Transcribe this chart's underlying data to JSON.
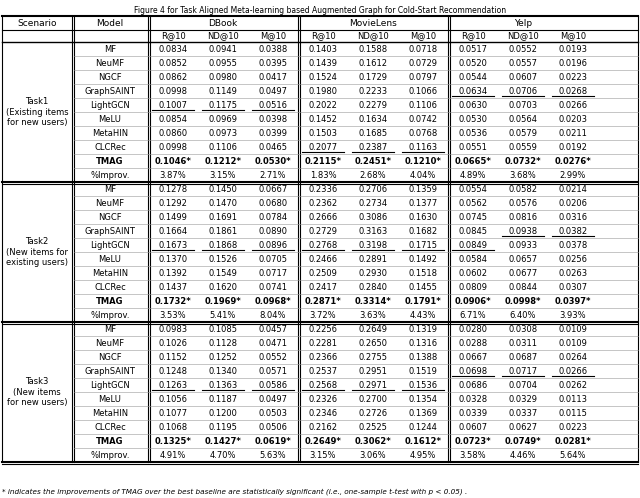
{
  "title": "Figure 4 for Task Aligned Meta-learning based Augmented Graph for Cold-Start Recommendation",
  "footnote": "* indicates the improvements of TMAG over the best baseline are statistically significant (i.e., one-sample t-test with p < 0.05) .",
  "col_groups": [
    "DBook",
    "MovieLens",
    "Yelp"
  ],
  "col_metrics": [
    "R@10",
    "ND@10",
    "M@10"
  ],
  "models": [
    "MF",
    "NeuMF",
    "NGCF",
    "GraphSAINT",
    "LightGCN",
    "MeLU",
    "MetaHIN",
    "CLCRec",
    "TMAG",
    "%Improv."
  ],
  "task_labels": [
    "Task1\n(Existing items\nfor new users)",
    "Task2\n(New items for\nexisting users)",
    "Task3\n(New items\nfor new users)"
  ],
  "data": {
    "Task1": {
      "MF": {
        "DBook": [
          0.0834,
          0.0941,
          0.0388
        ],
        "MovieLens": [
          0.1403,
          0.1588,
          0.0718
        ],
        "Yelp": [
          0.0517,
          0.0552,
          0.0193
        ]
      },
      "NeuMF": {
        "DBook": [
          0.0852,
          0.0955,
          0.0395
        ],
        "MovieLens": [
          0.1439,
          0.1612,
          0.0729
        ],
        "Yelp": [
          0.052,
          0.0557,
          0.0196
        ]
      },
      "NGCF": {
        "DBook": [
          0.0862,
          0.098,
          0.0417
        ],
        "MovieLens": [
          0.1524,
          0.1729,
          0.0797
        ],
        "Yelp": [
          0.0544,
          0.0607,
          0.0223
        ]
      },
      "GraphSAINT": {
        "DBook": [
          0.0998,
          0.1149,
          0.0497
        ],
        "MovieLens": [
          0.198,
          0.2233,
          0.1066
        ],
        "Yelp": [
          0.0634,
          0.0706,
          0.0268
        ]
      },
      "LightGCN": {
        "DBook": [
          0.1007,
          0.1175,
          0.0516
        ],
        "MovieLens": [
          0.2022,
          0.2279,
          0.1106
        ],
        "Yelp": [
          0.063,
          0.0703,
          0.0266
        ]
      },
      "MeLU": {
        "DBook": [
          0.0854,
          0.0969,
          0.0398
        ],
        "MovieLens": [
          0.1452,
          0.1634,
          0.0742
        ],
        "Yelp": [
          0.053,
          0.0564,
          0.0203
        ]
      },
      "MetaHIN": {
        "DBook": [
          0.086,
          0.0973,
          0.0399
        ],
        "MovieLens": [
          0.1503,
          0.1685,
          0.0768
        ],
        "Yelp": [
          0.0536,
          0.0579,
          0.0211
        ]
      },
      "CLCRec": {
        "DBook": [
          0.0998,
          0.1106,
          0.0465
        ],
        "MovieLens": [
          0.2077,
          0.2387,
          0.1163
        ],
        "Yelp": [
          0.0551,
          0.0559,
          0.0192
        ]
      },
      "TMAG": {
        "DBook": [
          0.1046,
          0.1212,
          0.053
        ],
        "MovieLens": [
          0.2115,
          0.2451,
          0.121
        ],
        "Yelp": [
          0.0665,
          0.0732,
          0.0276
        ]
      },
      "%Improv.": {
        "DBook": [
          "3.87%",
          "3.15%",
          "2.71%"
        ],
        "MovieLens": [
          "1.83%",
          "2.68%",
          "4.04%"
        ],
        "Yelp": [
          "4.89%",
          "3.68%",
          "2.99%"
        ]
      }
    },
    "Task2": {
      "MF": {
        "DBook": [
          0.1278,
          0.145,
          0.0667
        ],
        "MovieLens": [
          0.2336,
          0.2706,
          0.1359
        ],
        "Yelp": [
          0.0554,
          0.0582,
          0.0214
        ]
      },
      "NeuMF": {
        "DBook": [
          0.1292,
          0.147,
          0.068
        ],
        "MovieLens": [
          0.2362,
          0.2734,
          0.1377
        ],
        "Yelp": [
          0.0562,
          0.0576,
          0.0206
        ]
      },
      "NGCF": {
        "DBook": [
          0.1499,
          0.1691,
          0.0784
        ],
        "MovieLens": [
          0.2666,
          0.3086,
          0.163
        ],
        "Yelp": [
          0.0745,
          0.0816,
          0.0316
        ]
      },
      "GraphSAINT": {
        "DBook": [
          0.1664,
          0.1861,
          0.089
        ],
        "MovieLens": [
          0.2729,
          0.3163,
          0.1682
        ],
        "Yelp": [
          0.0845,
          0.0938,
          0.0382
        ]
      },
      "LightGCN": {
        "DBook": [
          0.1673,
          0.1868,
          0.0896
        ],
        "MovieLens": [
          0.2768,
          0.3198,
          0.1715
        ],
        "Yelp": [
          0.0849,
          0.0933,
          0.0378
        ]
      },
      "MeLU": {
        "DBook": [
          0.137,
          0.1526,
          0.0705
        ],
        "MovieLens": [
          0.2466,
          0.2891,
          0.1492
        ],
        "Yelp": [
          0.0584,
          0.0657,
          0.0256
        ]
      },
      "MetaHIN": {
        "DBook": [
          0.1392,
          0.1549,
          0.0717
        ],
        "MovieLens": [
          0.2509,
          0.293,
          0.1518
        ],
        "Yelp": [
          0.0602,
          0.0677,
          0.0263
        ]
      },
      "CLCRec": {
        "DBook": [
          0.1437,
          0.162,
          0.0741
        ],
        "MovieLens": [
          0.2417,
          0.284,
          0.1455
        ],
        "Yelp": [
          0.0809,
          0.0844,
          0.0307
        ]
      },
      "TMAG": {
        "DBook": [
          0.1732,
          0.1969,
          0.0968
        ],
        "MovieLens": [
          0.2871,
          0.3314,
          0.1791
        ],
        "Yelp": [
          0.0906,
          0.0998,
          0.0397
        ]
      },
      "%Improv.": {
        "DBook": [
          "3.53%",
          "5.41%",
          "8.04%"
        ],
        "MovieLens": [
          "3.72%",
          "3.63%",
          "4.43%"
        ],
        "Yelp": [
          "6.71%",
          "6.40%",
          "3.93%"
        ]
      }
    },
    "Task3": {
      "MF": {
        "DBook": [
          0.0983,
          0.1085,
          0.0457
        ],
        "MovieLens": [
          0.2256,
          0.2649,
          0.1319
        ],
        "Yelp": [
          0.028,
          0.0308,
          0.0109
        ]
      },
      "NeuMF": {
        "DBook": [
          0.1026,
          0.1128,
          0.0471
        ],
        "MovieLens": [
          0.2281,
          0.265,
          0.1316
        ],
        "Yelp": [
          0.0288,
          0.0311,
          0.0109
        ]
      },
      "NGCF": {
        "DBook": [
          0.1152,
          0.1252,
          0.0552
        ],
        "MovieLens": [
          0.2366,
          0.2755,
          0.1388
        ],
        "Yelp": [
          0.0667,
          0.0687,
          0.0264
        ]
      },
      "GraphSAINT": {
        "DBook": [
          0.1248,
          0.134,
          0.0571
        ],
        "MovieLens": [
          0.2537,
          0.2951,
          0.1519
        ],
        "Yelp": [
          0.0698,
          0.0717,
          0.0266
        ]
      },
      "LightGCN": {
        "DBook": [
          0.1263,
          0.1363,
          0.0586
        ],
        "MovieLens": [
          0.2568,
          0.2971,
          0.1536
        ],
        "Yelp": [
          0.0686,
          0.0704,
          0.0262
        ]
      },
      "MeLU": {
        "DBook": [
          0.1056,
          0.1187,
          0.0497
        ],
        "MovieLens": [
          0.2326,
          0.27,
          0.1354
        ],
        "Yelp": [
          0.0328,
          0.0329,
          0.0113
        ]
      },
      "MetaHIN": {
        "DBook": [
          0.1077,
          0.12,
          0.0503
        ],
        "MovieLens": [
          0.2346,
          0.2726,
          0.1369
        ],
        "Yelp": [
          0.0339,
          0.0337,
          0.0115
        ]
      },
      "CLCRec": {
        "DBook": [
          0.1068,
          0.1195,
          0.0506
        ],
        "MovieLens": [
          0.2162,
          0.2525,
          0.1244
        ],
        "Yelp": [
          0.0607,
          0.0627,
          0.0223
        ]
      },
      "TMAG": {
        "DBook": [
          0.1325,
          0.1427,
          0.0619
        ],
        "MovieLens": [
          0.2649,
          0.3062,
          0.1612
        ],
        "Yelp": [
          0.0723,
          0.0749,
          0.0281
        ]
      },
      "%Improv.": {
        "DBook": [
          "4.91%",
          "4.70%",
          "5.63%"
        ],
        "MovieLens": [
          "3.15%",
          "3.06%",
          "4.95%"
        ],
        "Yelp": [
          "3.58%",
          "4.46%",
          "5.64%"
        ]
      }
    }
  },
  "underlines": {
    "Task1": {
      "LightGCN": {
        "DBook": [
          0,
          1,
          2
        ],
        "MovieLens": [],
        "Yelp": []
      },
      "GraphSAINT": {
        "DBook": [],
        "MovieLens": [],
        "Yelp": [
          0,
          1,
          2
        ]
      },
      "CLCRec": {
        "DBook": [],
        "MovieLens": [
          0,
          1,
          2
        ],
        "Yelp": []
      }
    },
    "Task2": {
      "LightGCN": {
        "DBook": [
          0,
          1,
          2
        ],
        "MovieLens": [
          0,
          1,
          2
        ],
        "Yelp": [
          0
        ]
      },
      "GraphSAINT": {
        "DBook": [],
        "MovieLens": [],
        "Yelp": [
          1,
          2
        ]
      }
    },
    "Task3": {
      "LightGCN": {
        "DBook": [
          0,
          1,
          2
        ],
        "MovieLens": [
          0,
          1,
          2
        ],
        "Yelp": []
      },
      "GraphSAINT": {
        "DBook": [],
        "MovieLens": [],
        "Yelp": [
          0,
          1,
          2
        ]
      }
    }
  }
}
